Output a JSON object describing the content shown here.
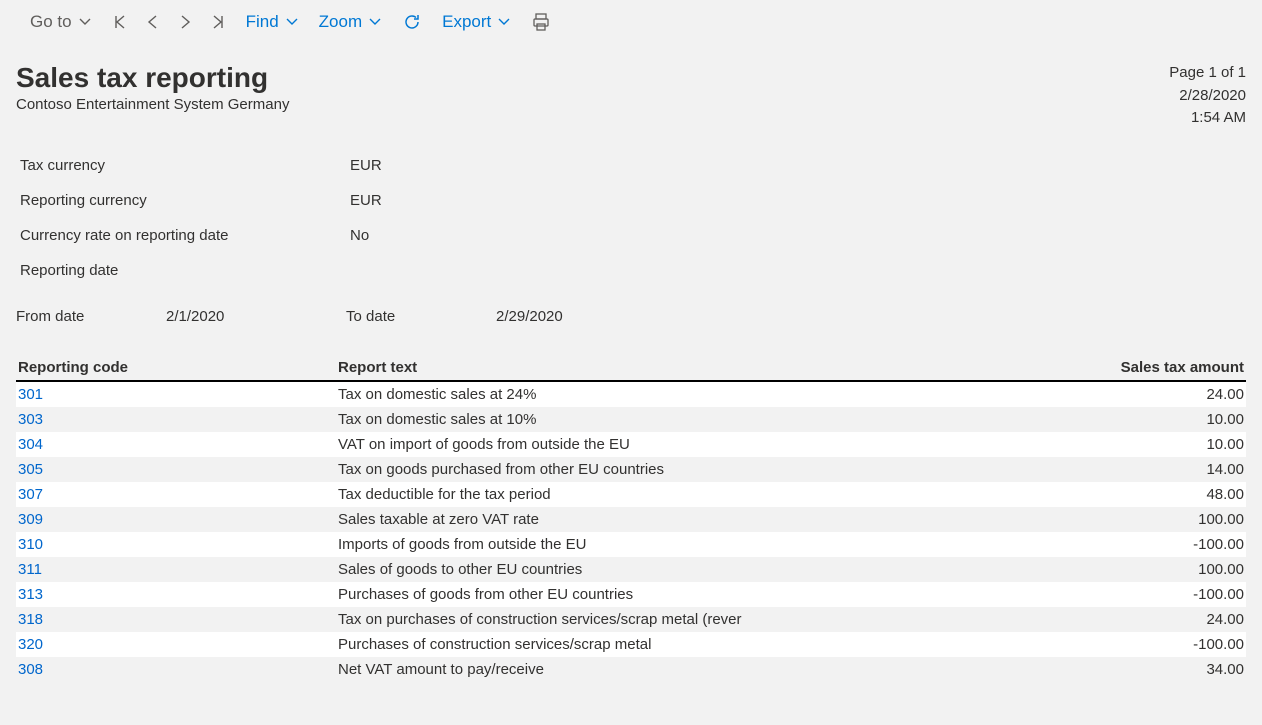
{
  "toolbar": {
    "goto_label": "Go to",
    "find_label": "Find",
    "zoom_label": "Zoom",
    "export_label": "Export"
  },
  "report": {
    "title": "Sales tax reporting",
    "company": "Contoso Entertainment System Germany",
    "page_info": "Page 1 of 1",
    "date": "2/28/2020",
    "time": "1:54 AM",
    "info": {
      "tax_currency_label": "Tax currency",
      "tax_currency_value": "EUR",
      "reporting_currency_label": "Reporting currency",
      "reporting_currency_value": "EUR",
      "currency_rate_label": "Currency rate on reporting date",
      "currency_rate_value": "No",
      "reporting_date_label": "Reporting date",
      "reporting_date_value": ""
    },
    "dates": {
      "from_label": "From date",
      "from_value": "2/1/2020",
      "to_label": "To date",
      "to_value": "2/29/2020"
    },
    "columns": {
      "code": "Reporting code",
      "text": "Report text",
      "amount": "Sales tax amount"
    },
    "rows": [
      {
        "code": "301",
        "text": "Tax on domestic sales at 24%",
        "amount": "24.00"
      },
      {
        "code": "303",
        "text": "Tax on domestic sales at 10%",
        "amount": "10.00"
      },
      {
        "code": "304",
        "text": "VAT on import of goods from outside the EU",
        "amount": "10.00"
      },
      {
        "code": "305",
        "text": "Tax on goods purchased from other EU countries",
        "amount": "14.00"
      },
      {
        "code": "307",
        "text": "Tax deductible for the tax period",
        "amount": "48.00"
      },
      {
        "code": "309",
        "text": "Sales taxable at zero VAT rate",
        "amount": "100.00"
      },
      {
        "code": "310",
        "text": "Imports of goods from outside the EU",
        "amount": "-100.00"
      },
      {
        "code": "311",
        "text": "Sales of goods to other EU countries",
        "amount": "100.00"
      },
      {
        "code": "313",
        "text": "Purchases of goods from other EU countries",
        "amount": "-100.00"
      },
      {
        "code": "318",
        "text": "Tax on purchases of construction services/scrap metal (rever",
        "amount": "24.00"
      },
      {
        "code": "320",
        "text": "Purchases of construction services/scrap metal",
        "amount": "-100.00"
      },
      {
        "code": "308",
        "text": "Net VAT amount to pay/receive",
        "amount": "34.00"
      }
    ]
  }
}
